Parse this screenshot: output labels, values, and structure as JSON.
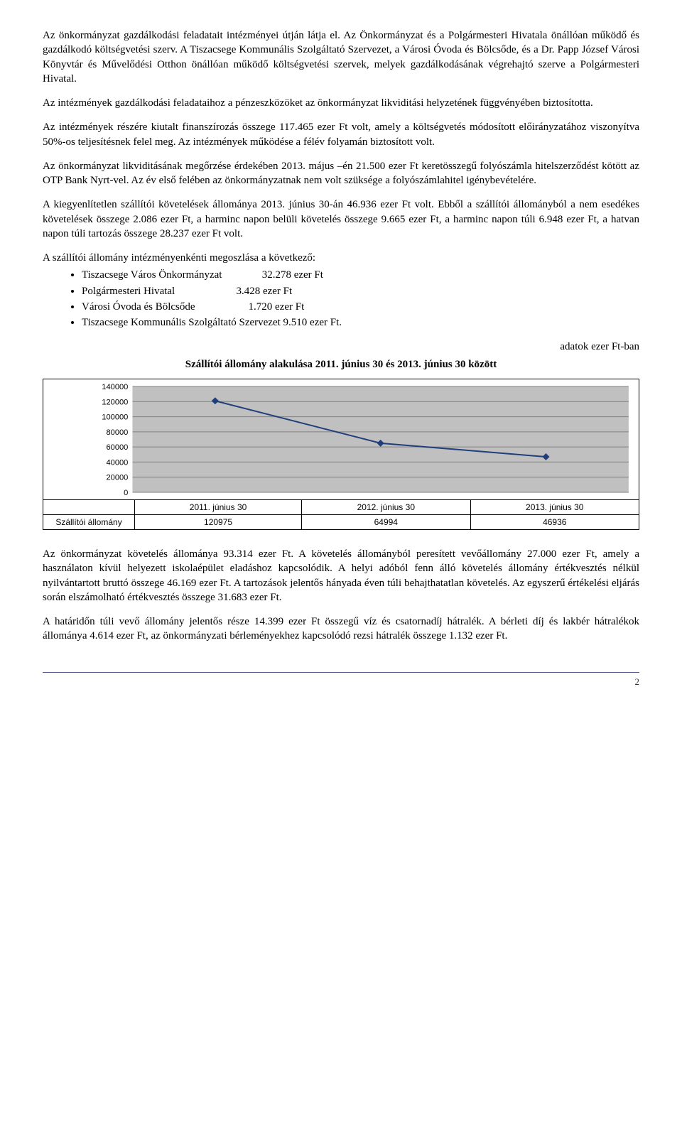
{
  "paragraphs": {
    "p1": "Az önkormányzat gazdálkodási feladatait intézményei útján látja el. Az Önkormányzat és a Polgármesteri Hivatala önállóan működő és gazdálkodó költségvetési szerv. A Tiszacsege Kommunális Szolgáltató Szervezet, a Városi Óvoda és Bölcsőde, és a Dr. Papp József Városi Könyvtár és Művelődési Otthon önállóan működő költségvetési szervek, melyek gazdálkodásának végrehajtó szerve a Polgármesteri Hivatal.",
    "p2": "Az intézmények gazdálkodási feladataihoz a pénzeszközöket az önkormányzat likviditási helyzetének függvényében biztosította.",
    "p3": "Az intézmények részére kiutalt finanszírozás összege 117.465 ezer Ft volt, amely a költségvetés módosított előirányzatához viszonyítva 50%-os teljesítésnek felel meg. Az intézmények működése a félév folyamán biztosított volt.",
    "p4": "Az önkormányzat likviditásának megőrzése érdekében 2013. május –én 21.500 ezer Ft keretösszegű folyószámla hitelszerződést kötött az OTP Bank Nyrt-vel. Az év első felében az önkormányzatnak nem volt szüksége a folyószámlahitel igénybevételére.",
    "p5": "A kiegyenlítetlen szállítói követelések állománya 2013. június 30-án 46.936 ezer Ft volt. Ebből a szállítói állományból a nem esedékes követelések összege 2.086 ezer Ft, a harminc napon belüli követelés összege 9.665 ezer Ft, a harminc napon túli 6.948 ezer Ft, a hatvan napon túli tartozás összege 28.237 ezer Ft volt.",
    "p6": "A szállítói állomány intézményenkénti megoszlása a következő:",
    "p7": "Az önkormányzat követelés állománya 93.314 ezer Ft. A követelés állományból peresített vevőállomány 27.000 ezer Ft, amely a használaton kívül helyezett iskolaépület eladáshoz kapcsolódik. A helyi adóból fenn álló követelés állomány értékvesztés nélkül nyilvántartott bruttó összege 46.169 ezer Ft. A tartozások jelentős hányada éven túli behajthatatlan követelés. Az egyszerű értékelési eljárás során elszámolható értékvesztés összege 31.683 ezer Ft.",
    "p8": "A határidőn túli vevő állomány jelentős része 14.399 ezer Ft összegű víz és csatornadíj hátralék. A bérleti díj és lakbér hátralékok állománya 4.614 ezer Ft, az önkormányzati bérleményekhez kapcsolódó rezsi hátralék összege 1.132 ezer Ft."
  },
  "bullets": [
    {
      "label": "Tiszacsege Város Önkormányzat",
      "value": "32.278 ezer Ft"
    },
    {
      "label": "Polgármesteri Hivatal",
      "value": "3.428 ezer Ft"
    },
    {
      "label": "Városi Óvoda és Bölcsőde",
      "value": "1.720 ezer Ft"
    },
    {
      "label": "Tiszacsege Kommunális Szolgáltató Szervezet",
      "value": "9.510 ezer Ft."
    }
  ],
  "right_note": "adatok ezer Ft-ban",
  "chart": {
    "title": "Szállítói állomány alakulása 2011. június 30 és 2013. június 30 között",
    "type": "line",
    "row_label": "Szállítói állomány",
    "categories": [
      "2011. június 30",
      "2012. június 30",
      "2013. június 30"
    ],
    "values": [
      120975,
      64994,
      46936
    ],
    "y_ticks": [
      0,
      20000,
      40000,
      60000,
      80000,
      100000,
      120000,
      140000
    ],
    "ylim": [
      0,
      140000
    ],
    "line_color": "#1f3e7a",
    "marker_color": "#1f3e7a",
    "marker_size": 5,
    "line_width": 2,
    "grid_color": "#808080",
    "plot_bg": "#c0c0c0",
    "axis_font_size": 11,
    "tick_font_size": 11
  },
  "page_number": "2"
}
